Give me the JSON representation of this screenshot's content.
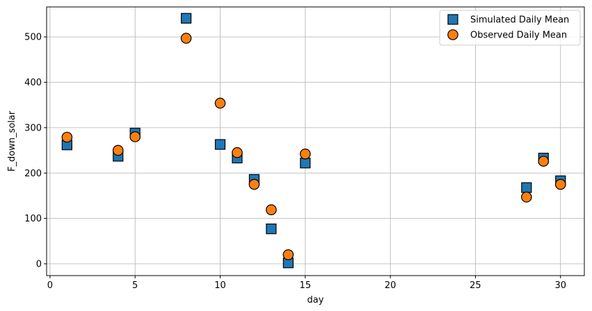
{
  "chart_data": {
    "type": "scatter",
    "title": "",
    "xlabel": "day",
    "ylabel": "F_down_solar",
    "xlim": [
      -0.2,
      31.4
    ],
    "ylim": [
      -26,
      566
    ],
    "xticks": [
      0,
      5,
      10,
      15,
      20,
      25,
      30
    ],
    "yticks": [
      0,
      100,
      200,
      300,
      400,
      500
    ],
    "grid": true,
    "legend_position": "top-right",
    "series": [
      {
        "name": "Simulated Daily Mean",
        "marker": "square",
        "color": "#1f77b4",
        "points": [
          {
            "x": 1,
            "y": 262
          },
          {
            "x": 4,
            "y": 237
          },
          {
            "x": 5,
            "y": 288
          },
          {
            "x": 8,
            "y": 541
          },
          {
            "x": 10,
            "y": 263
          },
          {
            "x": 11,
            "y": 233
          },
          {
            "x": 12,
            "y": 186
          },
          {
            "x": 13,
            "y": 77
          },
          {
            "x": 14,
            "y": 2
          },
          {
            "x": 15,
            "y": 222
          },
          {
            "x": 28,
            "y": 168
          },
          {
            "x": 29,
            "y": 233
          },
          {
            "x": 30,
            "y": 183
          }
        ]
      },
      {
        "name": "Observed Daily Mean",
        "marker": "circle",
        "color": "#ff7f0e",
        "points": [
          {
            "x": 1,
            "y": 279
          },
          {
            "x": 4,
            "y": 250
          },
          {
            "x": 5,
            "y": 280
          },
          {
            "x": 8,
            "y": 497
          },
          {
            "x": 10,
            "y": 354
          },
          {
            "x": 11,
            "y": 245
          },
          {
            "x": 12,
            "y": 175
          },
          {
            "x": 13,
            "y": 119
          },
          {
            "x": 14,
            "y": 20
          },
          {
            "x": 15,
            "y": 242
          },
          {
            "x": 28,
            "y": 147
          },
          {
            "x": 29,
            "y": 226
          },
          {
            "x": 30,
            "y": 175
          }
        ]
      }
    ]
  }
}
